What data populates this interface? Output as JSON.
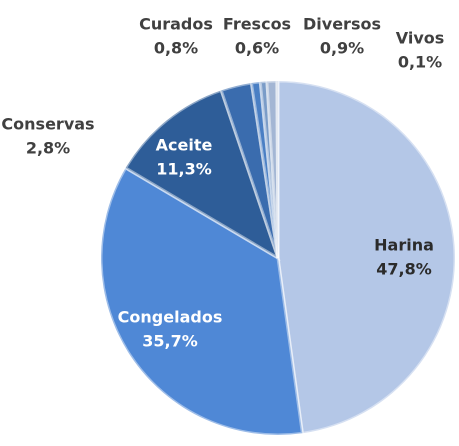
{
  "chart_data": {
    "type": "pie",
    "categories": [
      "Harina",
      "Congelados",
      "Aceite",
      "Conservas",
      "Curados",
      "Frescos",
      "Diversos",
      "Vivos"
    ],
    "values": [
      47.8,
      35.7,
      11.3,
      2.8,
      0.8,
      0.6,
      0.9,
      0.1
    ],
    "value_labels": [
      "47,8%",
      "35,7%",
      "11,3%",
      "2,8%",
      "0,8%",
      "0,6%",
      "0,9%",
      "0,1%"
    ],
    "colors": [
      "#b4c7e7",
      "#4f88d6",
      "#2e5d98",
      "#3a6cae",
      "#4a7fc4",
      "#7a9cc8",
      "#a3b6d4",
      "#c9d3e3"
    ]
  }
}
